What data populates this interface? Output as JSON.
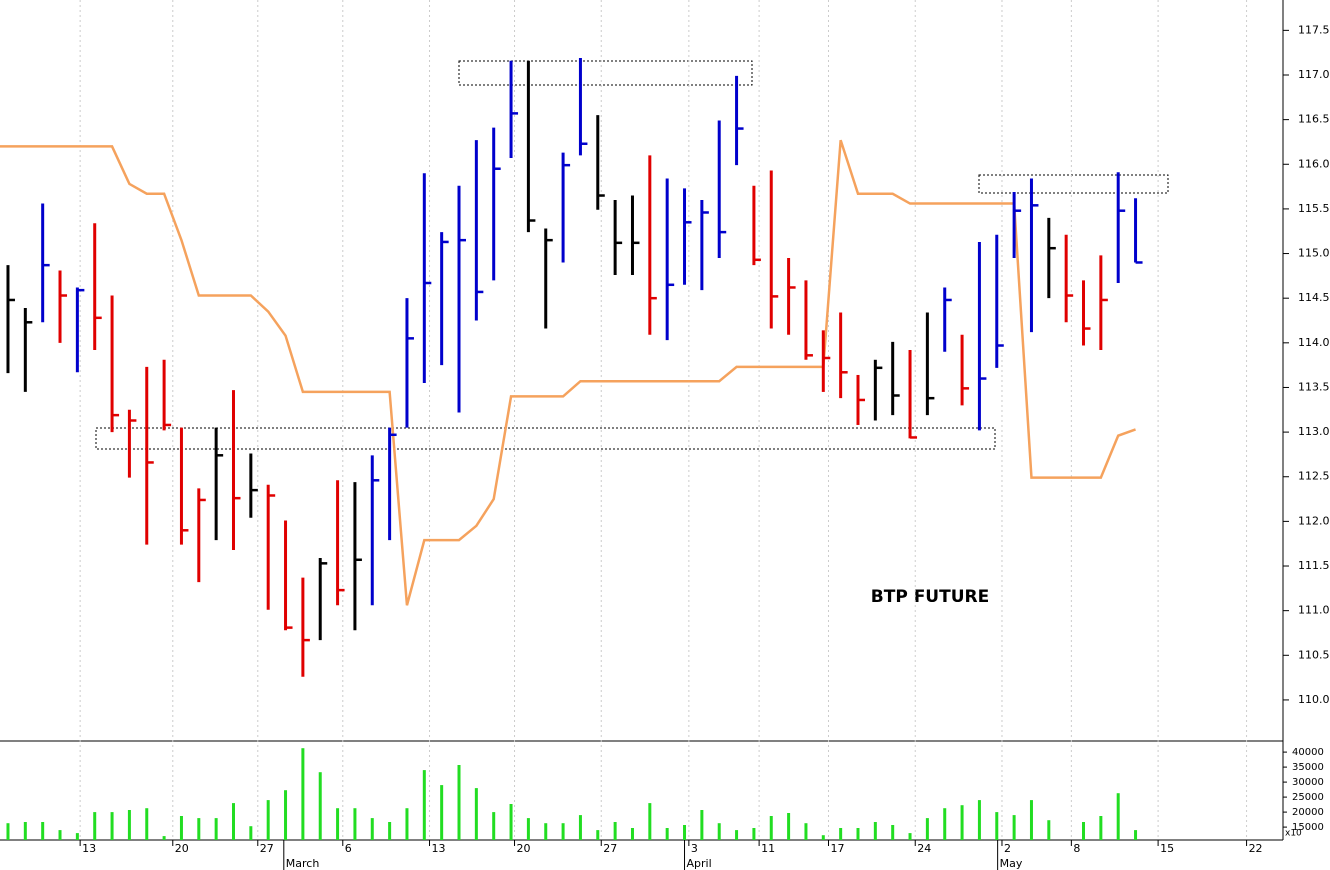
{
  "chart_data": [
    {
      "type": "hlc",
      "annotation": "BTP FUTURE",
      "x": [
        0,
        1,
        2,
        3,
        4,
        5,
        6,
        7,
        8,
        9,
        10,
        11,
        12,
        13,
        14,
        15,
        16,
        17,
        18,
        19,
        20,
        21,
        22,
        23,
        24,
        25,
        26,
        27,
        28,
        29,
        30,
        31,
        32,
        33,
        34,
        35,
        36,
        37,
        38,
        39,
        40,
        41,
        42,
        43,
        44,
        45,
        46,
        47,
        48,
        49,
        50,
        51,
        52,
        53,
        54,
        55,
        56,
        57,
        58,
        59,
        60,
        61,
        62,
        63,
        64,
        65
      ],
      "high": [
        114.87,
        114.39,
        115.56,
        114.81,
        114.62,
        115.34,
        114.53,
        113.25,
        113.73,
        113.81,
        113.05,
        112.37,
        113.05,
        113.47,
        112.76,
        112.41,
        112.01,
        111.37,
        111.59,
        112.46,
        112.44,
        112.74,
        113.05,
        114.5,
        115.9,
        115.24,
        115.76,
        116.27,
        116.41,
        117.16,
        117.16,
        115.28,
        116.13,
        117.19,
        116.55,
        115.6,
        115.65,
        116.1,
        115.84,
        115.73,
        115.6,
        116.49,
        116.99,
        115.76,
        115.93,
        114.95,
        114.7,
        114.14,
        114.34,
        113.64,
        113.81,
        114.01,
        113.92,
        114.34,
        114.62,
        114.09,
        115.13,
        115.21,
        115.69,
        115.84,
        115.4,
        115.21,
        114.7,
        114.98,
        115.91,
        115.62
      ],
      "low": [
        113.66,
        113.45,
        114.23,
        114.0,
        113.67,
        113.92,
        113.0,
        112.49,
        111.74,
        113.02,
        111.74,
        111.32,
        111.79,
        111.68,
        112.04,
        111.01,
        110.78,
        110.26,
        110.67,
        111.06,
        110.78,
        111.06,
        111.79,
        113.05,
        113.55,
        113.75,
        113.22,
        114.25,
        114.7,
        116.07,
        115.24,
        114.16,
        114.9,
        116.1,
        115.49,
        114.76,
        114.76,
        114.09,
        114.03,
        114.65,
        114.59,
        114.95,
        115.99,
        114.87,
        114.16,
        114.09,
        113.81,
        113.45,
        113.38,
        113.08,
        113.13,
        113.19,
        112.93,
        113.19,
        113.9,
        113.3,
        113.02,
        113.72,
        114.95,
        114.12,
        114.5,
        114.23,
        113.97,
        113.92,
        114.67,
        114.9
      ],
      "close": [
        114.48,
        114.23,
        114.87,
        114.53,
        114.59,
        114.28,
        113.19,
        113.13,
        112.66,
        113.08,
        111.9,
        112.24,
        112.74,
        112.26,
        112.35,
        112.29,
        110.81,
        110.67,
        111.53,
        111.23,
        111.57,
        112.46,
        112.97,
        114.05,
        114.67,
        115.13,
        115.15,
        114.57,
        115.95,
        116.57,
        115.37,
        115.15,
        115.99,
        116.23,
        115.65,
        115.12,
        115.12,
        114.5,
        114.65,
        115.35,
        115.46,
        115.24,
        116.4,
        114.93,
        114.52,
        114.62,
        113.86,
        113.83,
        113.67,
        113.36,
        113.72,
        113.41,
        112.94,
        113.38,
        114.48,
        113.49,
        113.6,
        113.97,
        115.48,
        115.54,
        115.06,
        114.53,
        114.16,
        114.48,
        115.48,
        114.9
      ],
      "colors": [
        "#000000",
        "#000000",
        "#0000cc",
        "#e00000",
        "#0000cc",
        "#e00000",
        "#e00000",
        "#e00000",
        "#e00000",
        "#e00000",
        "#e00000",
        "#e00000",
        "#000000",
        "#e00000",
        "#000000",
        "#e00000",
        "#e00000",
        "#e00000",
        "#000000",
        "#e00000",
        "#000000",
        "#0000cc",
        "#0000cc",
        "#0000cc",
        "#0000cc",
        "#0000cc",
        "#0000cc",
        "#0000cc",
        "#0000cc",
        "#0000cc",
        "#000000",
        "#000000",
        "#0000cc",
        "#0000cc",
        "#000000",
        "#000000",
        "#000000",
        "#e00000",
        "#0000cc",
        "#0000cc",
        "#0000cc",
        "#0000cc",
        "#0000cc",
        "#e00000",
        "#e00000",
        "#e00000",
        "#e00000",
        "#e00000",
        "#e00000",
        "#e00000",
        "#000000",
        "#000000",
        "#e00000",
        "#000000",
        "#0000cc",
        "#e00000",
        "#0000cc",
        "#0000cc",
        "#0000cc",
        "#0000cc",
        "#000000",
        "#e00000",
        "#e00000",
        "#e00000",
        "#0000cc",
        "#0000cc"
      ],
      "overlay": {
        "color": "#f5a25d",
        "x": [
          -0.46,
          6,
          7,
          8,
          9,
          10,
          11,
          14,
          15,
          16,
          17,
          22,
          23,
          24,
          26,
          27,
          28,
          29,
          32,
          33,
          41,
          42,
          47,
          48,
          49,
          51,
          52,
          58,
          59,
          63,
          64,
          65
        ],
        "values": [
          116.2,
          116.2,
          115.78,
          115.67,
          115.67,
          115.15,
          114.53,
          114.53,
          114.35,
          114.08,
          113.45,
          113.45,
          111.06,
          111.79,
          111.79,
          111.95,
          112.25,
          113.4,
          113.4,
          113.57,
          113.57,
          113.73,
          113.73,
          116.27,
          115.67,
          115.67,
          115.56,
          115.56,
          112.49,
          112.49,
          112.96,
          113.03
        ]
      },
      "xlim": [
        -0.46,
        73.5
      ],
      "xticks": [
        {
          "value": 4.16,
          "label": "13"
        },
        {
          "value": 9.5,
          "label": "20"
        },
        {
          "value": 14.4,
          "label": "27"
        },
        {
          "value": 19.3,
          "label": "6"
        },
        {
          "value": 24.3,
          "label": "13"
        },
        {
          "value": 29.2,
          "label": "20"
        },
        {
          "value": 34.2,
          "label": "27"
        },
        {
          "value": 39.25,
          "label": "3"
        },
        {
          "value": 43.3,
          "label": "11"
        },
        {
          "value": 47.3,
          "label": "17"
        },
        {
          "value": 52.3,
          "label": "24"
        },
        {
          "value": 57.3,
          "label": "2"
        },
        {
          "value": 61.3,
          "label": "8"
        },
        {
          "value": 66.3,
          "label": "15"
        },
        {
          "value": 71.4,
          "label": "22"
        }
      ],
      "month_ticks": [
        {
          "value": 15.9,
          "label": "March"
        },
        {
          "value": 39.0,
          "label": "April"
        },
        {
          "value": 57.05,
          "label": "May"
        }
      ],
      "ylim": [
        109.54,
        117.84
      ],
      "yticks": [
        {
          "value": 110.0,
          "label": "110.0"
        },
        110.5,
        {
          "value": 111.0,
          "label": "111.0"
        },
        111.5,
        {
          "value": 112.0,
          "label": "112.0"
        },
        112.5,
        {
          "value": 113.0,
          "label": "113.0"
        },
        113.5,
        {
          "value": 114.0,
          "label": "114.0"
        },
        114.5,
        {
          "value": 115.0,
          "label": "115.0"
        },
        115.5,
        {
          "value": 116.0,
          "label": "116.0"
        },
        116.5,
        {
          "value": 117.0,
          "label": "117.0"
        },
        117.5
      ]
    },
    {
      "type": "bar",
      "color": "#22dd22",
      "unit_label": "x10",
      "values": [
        16300,
        16700,
        16700,
        14000,
        13000,
        20000,
        20000,
        20700,
        21300,
        12000,
        18700,
        18000,
        18000,
        23000,
        15300,
        24000,
        27300,
        41300,
        33300,
        21300,
        21300,
        18000,
        16700,
        21300,
        34000,
        29000,
        35700,
        28000,
        20000,
        22700,
        18000,
        16300,
        16300,
        19000,
        14000,
        16700,
        14700,
        23000,
        14700,
        15700,
        20700,
        16300,
        14000,
        14700,
        18700,
        19700,
        16300,
        12300,
        14700,
        14700,
        16700,
        15700,
        13000,
        18000,
        21300,
        22300,
        24000,
        20000,
        19000,
        24000,
        17300,
        10700,
        16700,
        18700,
        26300,
        14000
      ],
      "ylim": [
        10700,
        43700
      ],
      "yticks": [
        15000,
        20000,
        25000,
        30000,
        35000,
        40000
      ]
    }
  ]
}
